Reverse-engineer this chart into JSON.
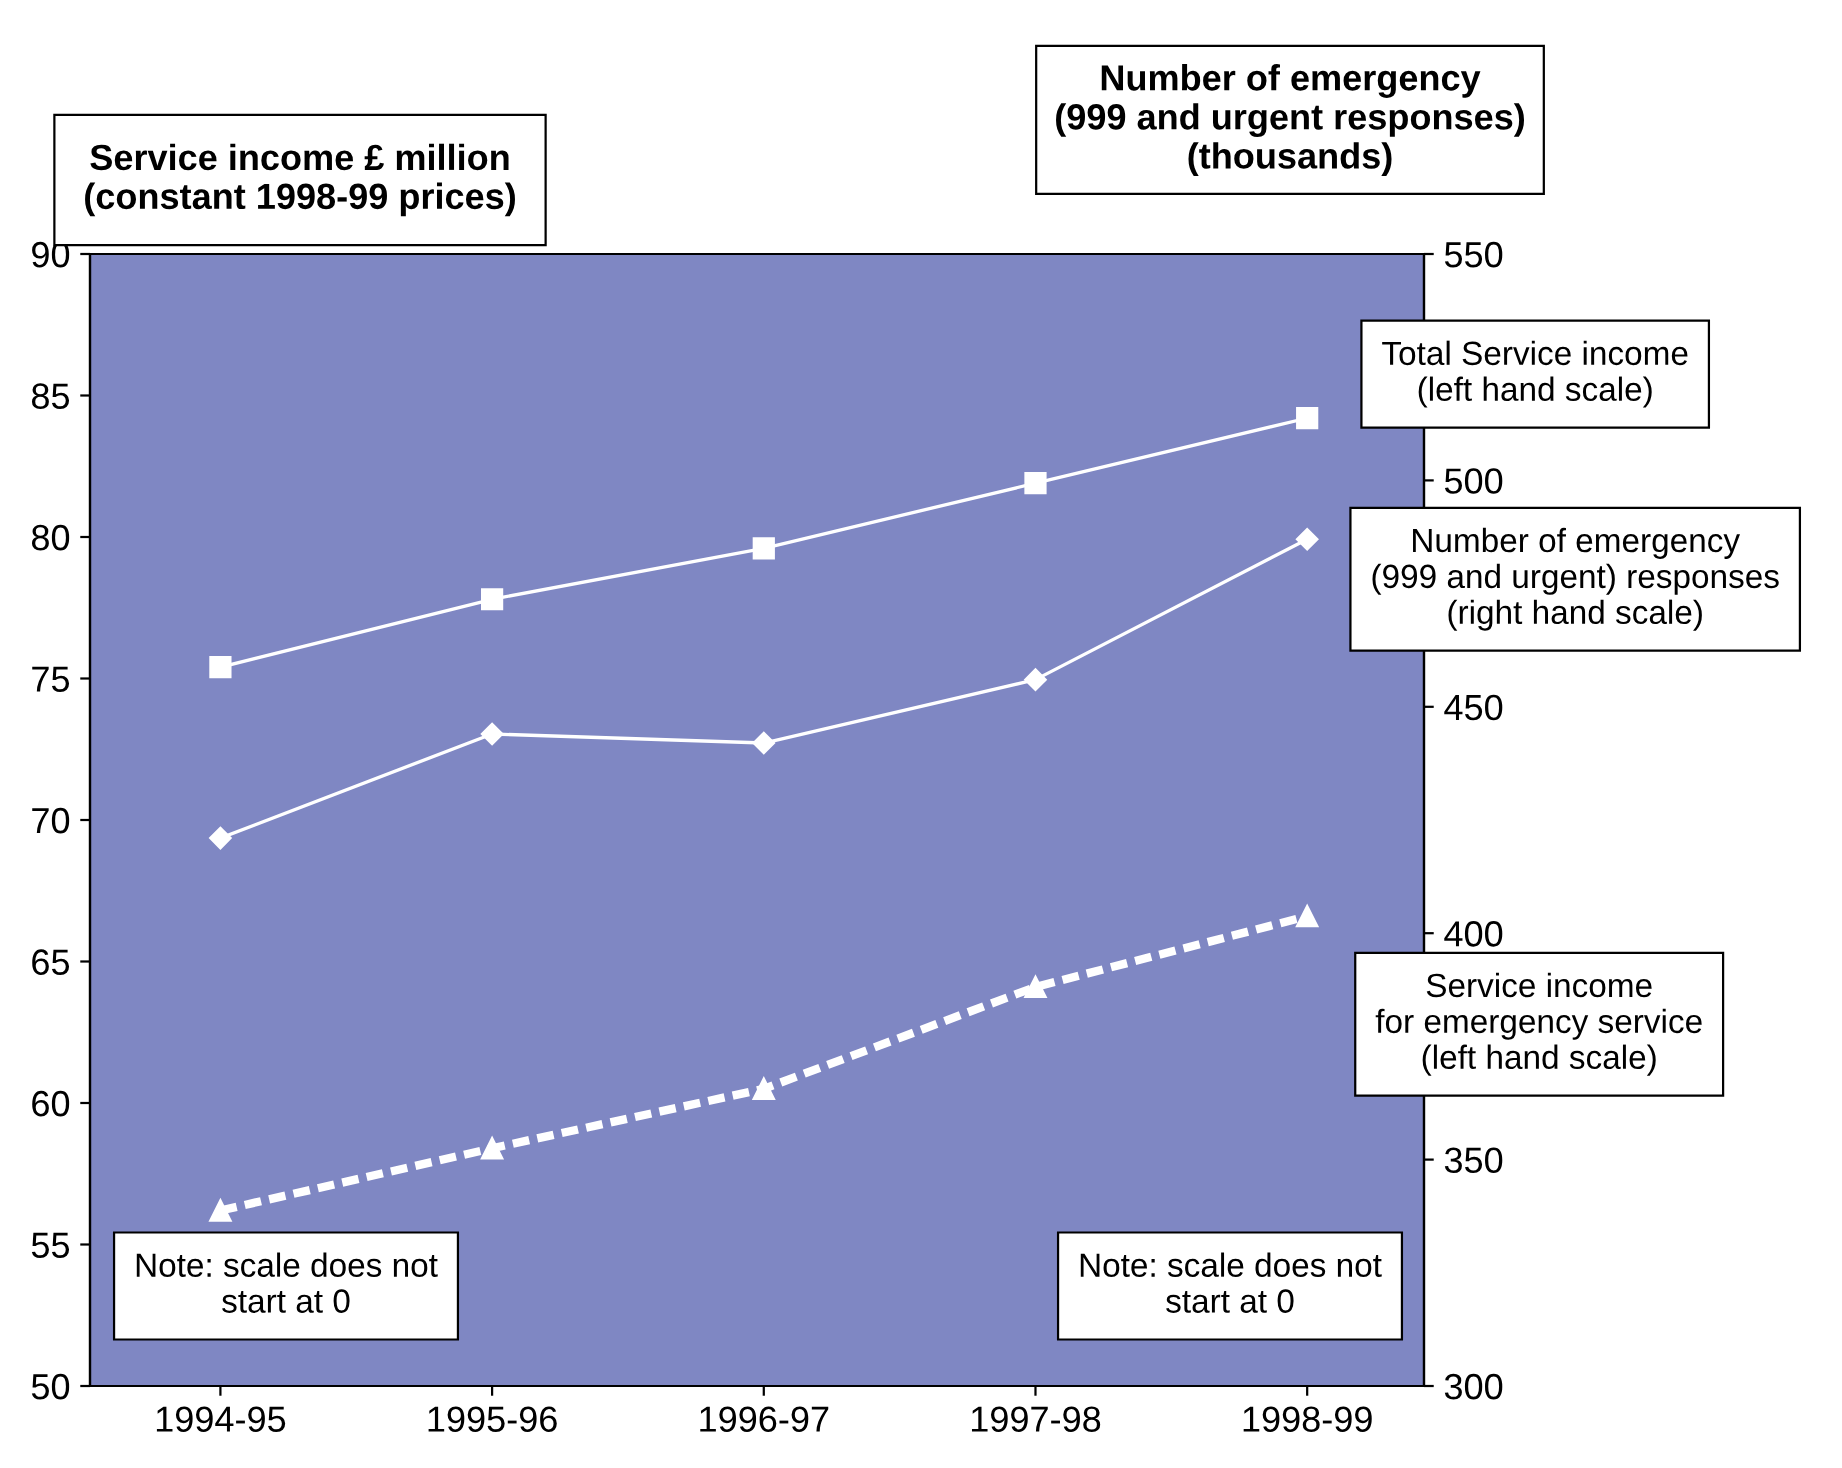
{
  "chart_data": {
    "type": "line",
    "ylabel": "Service income £ million\n(constant 1998-99 prices)",
    "y2label": "Number of emergency\n(999 and urgent responses)\n(thousands)",
    "categories": [
      "1994-95",
      "1995-96",
      "1996-97",
      "1997-98",
      "1998-99"
    ],
    "series": [
      {
        "name": "Total Service income\n(left hand scale)",
        "color": "#ffffff",
        "values": [
          75.4,
          77.8,
          79.6,
          81.9,
          84.2
        ],
        "marker": "square",
        "line_style": "solid"
      },
      {
        "name": "Number of emergency\n(999 and urgent) responses\n(right hand scale)",
        "color": "#ffffff",
        "values": [
          421,
          444,
          442,
          456,
          487
        ],
        "axis": "y2",
        "marker": "diamond",
        "line_style": "solid"
      },
      {
        "name": "Service income\nfor emergency service\n(left hand scale)",
        "color": "#ffffff",
        "values": [
          56.2,
          58.4,
          60.5,
          64.1,
          66.6
        ],
        "marker": "triangle",
        "line_style": "dashed"
      }
    ],
    "ylim": [
      50,
      90
    ],
    "yticks": [
      50,
      55,
      60,
      65,
      70,
      75,
      80,
      85,
      90
    ],
    "y2lim": [
      300,
      550
    ],
    "y2ticks": [
      300,
      350,
      400,
      450,
      500,
      550
    ],
    "annotations": [
      "Note: scale does not\nstart at 0",
      "Note: scale does not\nstart at 0"
    ],
    "grid": false,
    "legend": false
  }
}
